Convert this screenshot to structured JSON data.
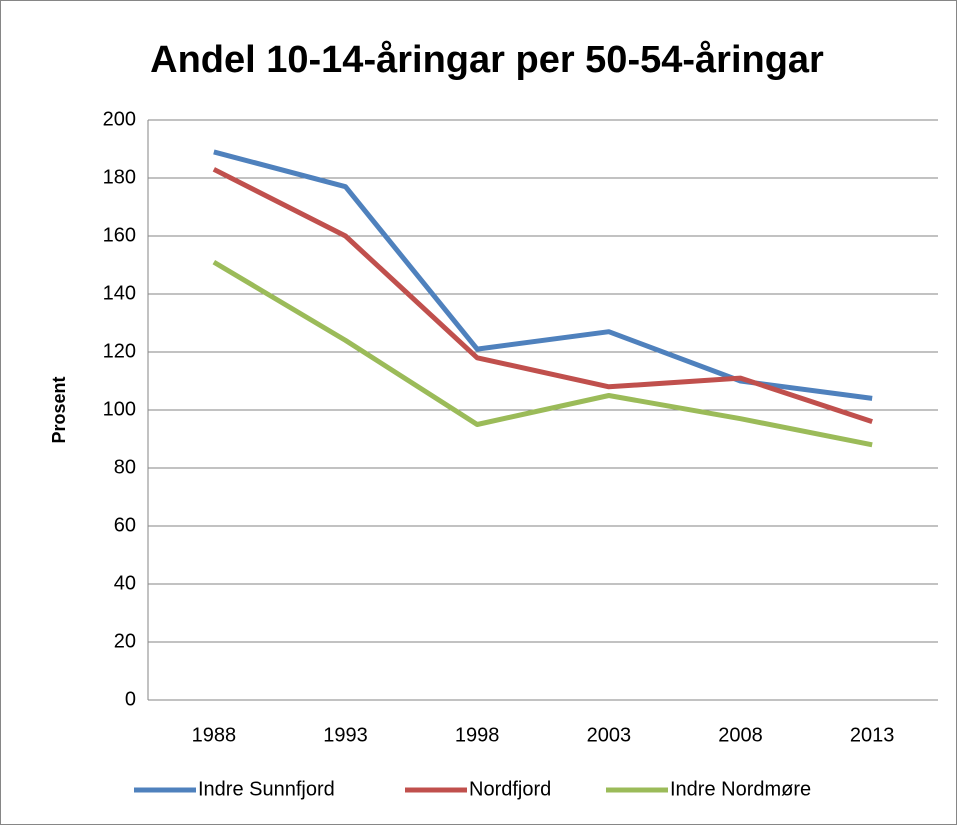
{
  "chart_data": {
    "type": "line",
    "title": "Andel 10-14-åringar per 50-54-åringar",
    "y_label": "Prosent",
    "categories": [
      "1988",
      "1993",
      "1998",
      "2003",
      "2008",
      "2013"
    ],
    "series": [
      {
        "name": "Indre Sunnfjord",
        "color": "#4f81bd",
        "values": [
          189,
          177,
          121,
          127,
          110,
          104
        ]
      },
      {
        "name": "Nordfjord",
        "color": "#c0504d",
        "values": [
          183,
          160,
          118,
          108,
          111,
          96
        ]
      },
      {
        "name": "Indre Nordmøre",
        "color": "#9bbb59",
        "values": [
          151,
          124,
          95,
          105,
          97,
          88
        ]
      }
    ],
    "ylim": [
      0,
      200
    ],
    "yticks": [
      0,
      20,
      40,
      60,
      80,
      100,
      120,
      140,
      160,
      180,
      200
    ],
    "grid": true,
    "legend": "bottom"
  }
}
